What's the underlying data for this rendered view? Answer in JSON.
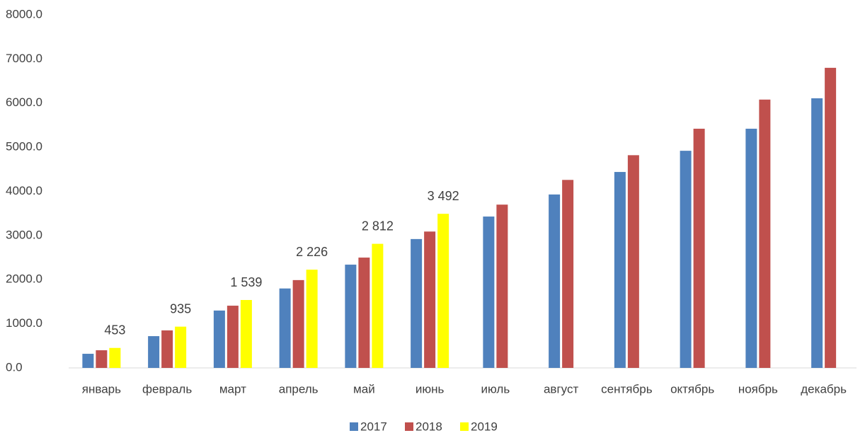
{
  "chart_data": {
    "type": "bar",
    "categories": [
      "январь",
      "февраль",
      "март",
      "апрель",
      "май",
      "июнь",
      "июль",
      "август",
      "сентябрь",
      "октябрь",
      "ноябрь",
      "декабрь"
    ],
    "series": [
      {
        "name": "2017",
        "color": "#4f81bd",
        "values": [
          320,
          720,
          1300,
          1800,
          2340,
          2920,
          3430,
          3930,
          4440,
          4920,
          5420,
          6110
        ]
      },
      {
        "name": "2018",
        "color": "#c0504d",
        "values": [
          400,
          850,
          1410,
          1990,
          2500,
          3090,
          3700,
          4260,
          4820,
          5420,
          6080,
          6800
        ]
      },
      {
        "name": "2019",
        "color": "#ffff00",
        "values": [
          453,
          935,
          1539,
          2226,
          2812,
          3492,
          null,
          null,
          null,
          null,
          null,
          null
        ],
        "value_labels": [
          "453",
          "935",
          "1 539",
          "2 226",
          "2 812",
          "3 492",
          null,
          null,
          null,
          null,
          null,
          null
        ]
      }
    ],
    "ylim": [
      0,
      8000
    ],
    "yticks": [
      {
        "value": 0,
        "label": "0.0"
      },
      {
        "value": 1000,
        "label": "1000.0"
      },
      {
        "value": 2000,
        "label": "2000.0"
      },
      {
        "value": 3000,
        "label": "3000.0"
      },
      {
        "value": 4000,
        "label": "4000.0"
      },
      {
        "value": 5000,
        "label": "5000.0"
      },
      {
        "value": 6000,
        "label": "6000.0"
      },
      {
        "value": 7000,
        "label": "7000.0"
      },
      {
        "value": 8000,
        "label": "8000.0"
      }
    ],
    "grid": false,
    "legend": "bottom"
  }
}
